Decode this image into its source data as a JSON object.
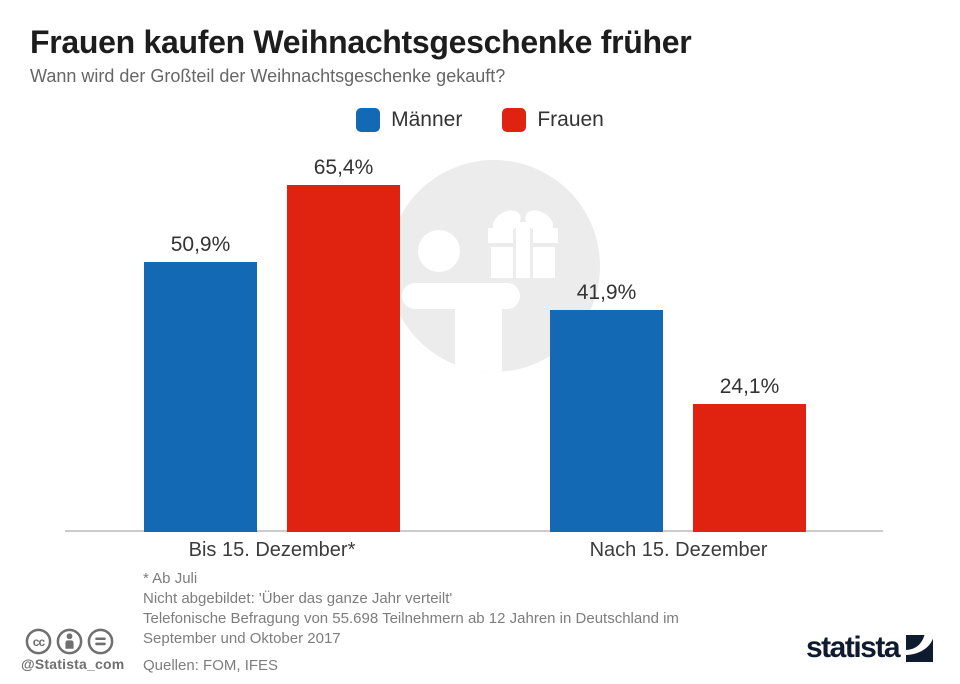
{
  "header": {
    "title": "Frauen kaufen Weihnachtsgeschenke früher",
    "subtitle": "Wann wird der Großteil der Weihnachtsgeschenke gekauft?"
  },
  "chart_data": {
    "type": "bar",
    "title": "Frauen kaufen Weihnachtsgeschenke früher",
    "subtitle": "Wann wird der Großteil der Weihnachtsgeschenke gekauft?",
    "categories": [
      "Bis 15. Dezember*",
      "Nach 15. Dezember"
    ],
    "series": [
      {
        "name": "Männer",
        "color": "#1369b4",
        "values": [
          50.9,
          41.9
        ],
        "labels": [
          "50,9%",
          "41,9%"
        ]
      },
      {
        "name": "Frauen",
        "color": "#df2310",
        "values": [
          65.4,
          24.1
        ],
        "labels": [
          "65,4%",
          "24,1%"
        ]
      }
    ],
    "unit": "%",
    "ylim": [
      0,
      72
    ],
    "grid": false,
    "legend_position": "top-center"
  },
  "footnotes": {
    "asterisk": "* Ab Juli",
    "not_shown": "Nicht abgebildet: 'Über das ganze Jahr verteilt'",
    "method": "Telefonische Befragung von 55.698 Teilnehmern ab 12 Jahren in Deutschland im September und Oktober 2017",
    "source": "Quellen: FOM, IFES"
  },
  "branding": {
    "handle": "@Statista_com",
    "logo_text": "statista",
    "license_icons": [
      "cc-icon",
      "attribution-icon",
      "equals-icon"
    ],
    "watermark_icon": "gift-in-hand-watermark"
  },
  "colors": {
    "maenner_blue": "#1369b4",
    "frauen_red": "#df2310",
    "axis": "#cccccc",
    "watermark_gray": "#ececec",
    "logo_navy": "#0f1b2e",
    "footnote_gray": "#7d7d7d"
  }
}
